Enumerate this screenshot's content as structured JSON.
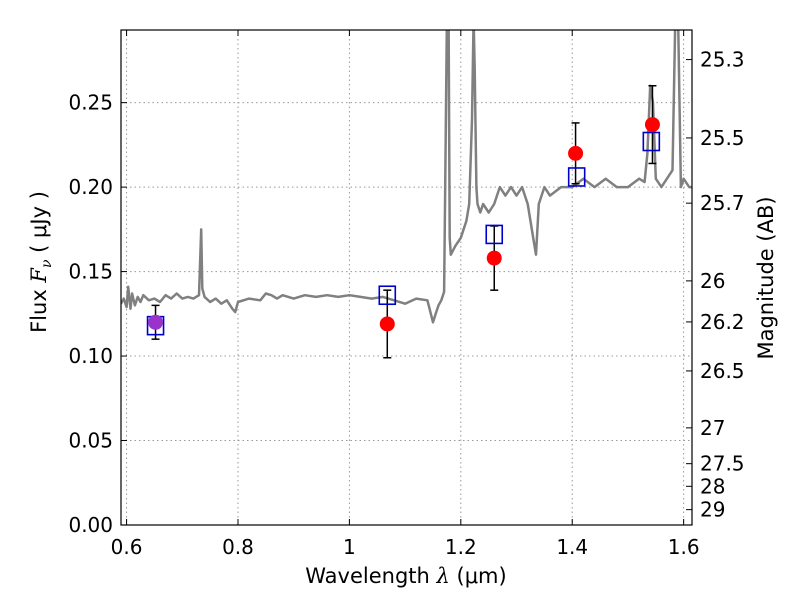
{
  "chart_data": {
    "type": "scatter",
    "xlabel_prefix": "Wavelength  ",
    "xlabel_symbol": "λ",
    "xlabel_unit": " (μm)",
    "ylabel_prefix": "Flux  ",
    "ylabel_symbol": "F",
    "ylabel_sub": "ν",
    "ylabel_unit": "  ( μJy )",
    "ylabel_right": "Magnitude (AB)",
    "xlim": [
      0.59,
      1.615
    ],
    "ylim": [
      0.0,
      0.293
    ],
    "grid": true,
    "x_ticks": [
      {
        "value": 0.6,
        "label": "0.6"
      },
      {
        "value": 0.8,
        "label": "0.8"
      },
      {
        "value": 1.0,
        "label": "1"
      },
      {
        "value": 1.2,
        "label": "1.2"
      },
      {
        "value": 1.4,
        "label": "1.4"
      },
      {
        "value": 1.6,
        "label": "1.6"
      }
    ],
    "y_ticks": [
      {
        "value": 0.0,
        "label": "0.00"
      },
      {
        "value": 0.05,
        "label": "0.05"
      },
      {
        "value": 0.1,
        "label": "0.10"
      },
      {
        "value": 0.15,
        "label": "0.15"
      },
      {
        "value": 0.2,
        "label": "0.20"
      },
      {
        "value": 0.25,
        "label": "0.25"
      }
    ],
    "mag_ticks": [
      {
        "flux": 0.2755,
        "label": "25.3"
      },
      {
        "flux": 0.2291,
        "label": "25.5"
      },
      {
        "flux": 0.1905,
        "label": "25.7"
      },
      {
        "flux": 0.1445,
        "label": "26"
      },
      {
        "flux": 0.1202,
        "label": "26.2"
      },
      {
        "flux": 0.0912,
        "label": "26.5"
      },
      {
        "flux": 0.0575,
        "label": "27"
      },
      {
        "flux": 0.0363,
        "label": "27.5"
      },
      {
        "flux": 0.0229,
        "label": "28"
      },
      {
        "flux": 0.0091,
        "label": "29"
      }
    ],
    "colors": {
      "spectrum": "#808080",
      "observed": "#ff0000",
      "observed_first": "#9933cc",
      "model": "#0000cc",
      "errorbar": "#000000",
      "grid": "#999999"
    },
    "series": [
      {
        "kind": "spectrum",
        "x": [
          0.59,
          0.595,
          0.6,
          0.603,
          0.607,
          0.61,
          0.615,
          0.62,
          0.625,
          0.63,
          0.64,
          0.65,
          0.66,
          0.67,
          0.68,
          0.69,
          0.7,
          0.71,
          0.72,
          0.73,
          0.734,
          0.736,
          0.74,
          0.75,
          0.76,
          0.77,
          0.78,
          0.79,
          0.795,
          0.8,
          0.82,
          0.84,
          0.85,
          0.86,
          0.87,
          0.88,
          0.9,
          0.92,
          0.94,
          0.96,
          0.98,
          1.0,
          1.02,
          1.04,
          1.06,
          1.08,
          1.1,
          1.12,
          1.14,
          1.15,
          1.155,
          1.16,
          1.165,
          1.17,
          1.172,
          1.175,
          1.178,
          1.18,
          1.182,
          1.19,
          1.2,
          1.21,
          1.215,
          1.22,
          1.223,
          1.225,
          1.228,
          1.23,
          1.235,
          1.24,
          1.25,
          1.26,
          1.27,
          1.28,
          1.29,
          1.3,
          1.31,
          1.32,
          1.33,
          1.335,
          1.34,
          1.35,
          1.36,
          1.38,
          1.4,
          1.42,
          1.44,
          1.46,
          1.48,
          1.5,
          1.52,
          1.53,
          1.535,
          1.54,
          1.545,
          1.55,
          1.56,
          1.57,
          1.58,
          1.585,
          1.59,
          1.595,
          1.6,
          1.61,
          1.615
        ],
        "y": [
          0.131,
          0.134,
          0.129,
          0.141,
          0.128,
          0.137,
          0.13,
          0.135,
          0.132,
          0.136,
          0.133,
          0.134,
          0.132,
          0.136,
          0.134,
          0.137,
          0.134,
          0.135,
          0.134,
          0.136,
          0.175,
          0.14,
          0.135,
          0.132,
          0.134,
          0.131,
          0.133,
          0.128,
          0.126,
          0.132,
          0.134,
          0.133,
          0.137,
          0.136,
          0.134,
          0.136,
          0.134,
          0.136,
          0.135,
          0.136,
          0.135,
          0.136,
          0.135,
          0.134,
          0.135,
          0.133,
          0.131,
          0.134,
          0.133,
          0.12,
          0.125,
          0.13,
          0.133,
          0.138,
          0.2,
          0.3,
          0.3,
          0.17,
          0.16,
          0.165,
          0.17,
          0.18,
          0.19,
          0.24,
          0.3,
          0.27,
          0.2,
          0.19,
          0.185,
          0.19,
          0.185,
          0.19,
          0.2,
          0.195,
          0.2,
          0.195,
          0.2,
          0.19,
          0.17,
          0.16,
          0.19,
          0.2,
          0.195,
          0.2,
          0.2,
          0.205,
          0.2,
          0.205,
          0.2,
          0.2,
          0.205,
          0.203,
          0.22,
          0.26,
          0.25,
          0.205,
          0.2,
          0.205,
          0.21,
          0.3,
          0.3,
          0.2,
          0.205,
          0.2,
          0.2
        ]
      },
      {
        "kind": "model",
        "name": "",
        "x": [
          0.652,
          1.068,
          1.26,
          1.408,
          1.542
        ],
        "y": [
          0.118,
          0.136,
          0.172,
          0.206,
          0.227
        ]
      },
      {
        "kind": "observed",
        "name": "",
        "x": [
          0.652,
          1.068,
          1.26,
          1.406,
          1.544
        ],
        "y": [
          0.12,
          0.119,
          0.158,
          0.22,
          0.237
        ],
        "err": [
          0.01,
          0.02,
          0.019,
          0.018,
          0.023
        ]
      }
    ]
  }
}
